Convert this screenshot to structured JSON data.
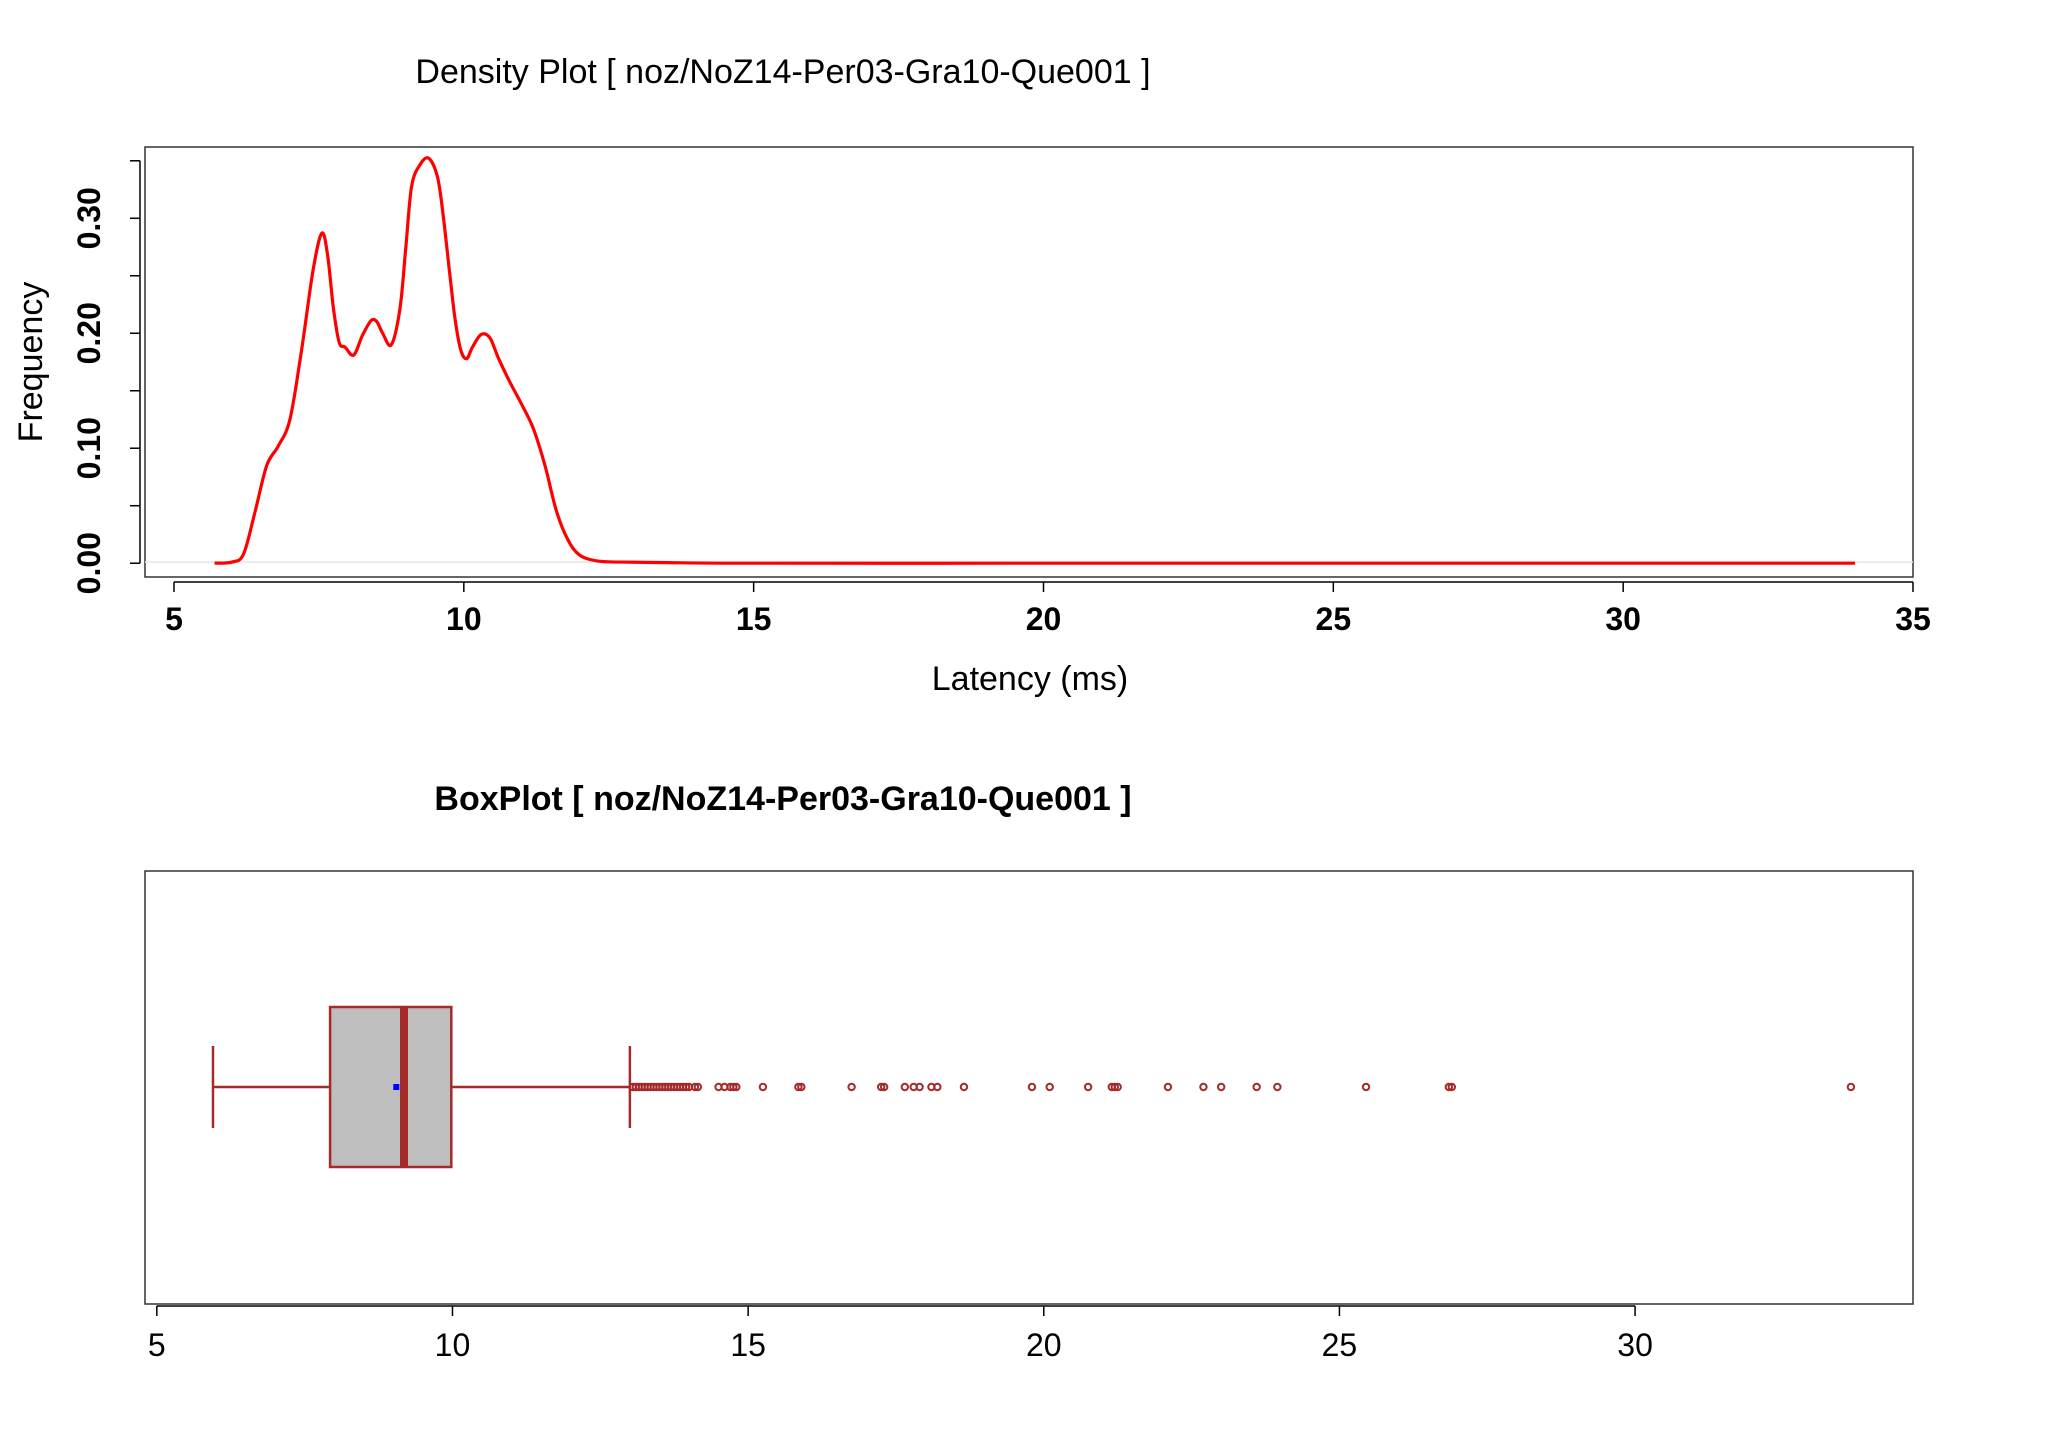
{
  "chart_data": [
    {
      "type": "line",
      "title": "Density Plot [ noz/NoZ14-Per03-Gra10-Que001 ]",
      "xlabel": "Latency (ms)",
      "ylabel": "Frequency",
      "xlim": [
        4.5,
        35
      ],
      "ylim": [
        -0.012,
        0.362
      ],
      "x_ticks": [
        5,
        10,
        15,
        20,
        25,
        30,
        35
      ],
      "y_ticks": [
        0.0,
        0.1,
        0.2,
        0.3
      ],
      "y_tick_labels": [
        "0.00",
        "0.10",
        "0.20",
        "0.30"
      ],
      "y_minor_ticks": [
        0.05,
        0.15,
        0.25,
        0.35
      ],
      "series": [
        {
          "color": "#ff0000",
          "x": [
            5.7,
            6.0,
            6.2,
            6.4,
            6.6,
            6.8,
            7.0,
            7.2,
            7.4,
            7.55,
            7.65,
            7.75,
            7.85,
            7.95,
            8.1,
            8.25,
            8.4,
            8.5,
            8.6,
            8.75,
            8.9,
            9.0,
            9.1,
            9.25,
            9.4,
            9.55,
            9.65,
            9.75,
            9.85,
            9.95,
            10.05,
            10.15,
            10.3,
            10.45,
            10.6,
            10.8,
            11.0,
            11.2,
            11.4,
            11.6,
            11.8,
            12.0,
            12.3,
            12.7,
            13.5,
            15,
            20,
            25,
            30,
            34.0
          ],
          "y": [
            0.0,
            0.001,
            0.008,
            0.045,
            0.085,
            0.102,
            0.125,
            0.185,
            0.255,
            0.287,
            0.268,
            0.222,
            0.192,
            0.188,
            0.181,
            0.198,
            0.211,
            0.21,
            0.2,
            0.19,
            0.222,
            0.275,
            0.328,
            0.347,
            0.352,
            0.335,
            0.3,
            0.255,
            0.212,
            0.185,
            0.178,
            0.188,
            0.199,
            0.196,
            0.178,
            0.157,
            0.138,
            0.117,
            0.085,
            0.045,
            0.02,
            0.007,
            0.002,
            0.001,
            0.0005,
            0.0,
            0.0,
            0.0,
            0.0,
            0.0
          ]
        }
      ]
    },
    {
      "type": "box",
      "title": "BoxPlot [ noz/NoZ14-Per03-Gra10-Que001 ]",
      "xlim": [
        4.8,
        34.7
      ],
      "x_ticks": [
        5,
        10,
        15,
        20,
        25,
        30
      ],
      "stats": {
        "whisker_low": 5.95,
        "q1": 7.93,
        "median": 9.18,
        "mean": 9.05,
        "q3": 9.98,
        "whisker_high": 13.0
      },
      "colors": {
        "border": "#a52a2a",
        "fill": "#bebebe",
        "mean": "#0000ff"
      },
      "outliers": [
        13.05,
        13.1,
        13.15,
        13.2,
        13.25,
        13.3,
        13.35,
        13.4,
        13.45,
        13.5,
        13.55,
        13.6,
        13.65,
        13.7,
        13.75,
        13.8,
        13.85,
        13.9,
        13.95,
        14.0,
        14.1,
        14.15,
        14.5,
        14.6,
        14.7,
        14.75,
        14.8,
        15.25,
        15.85,
        15.9,
        16.75,
        17.25,
        17.3,
        17.65,
        17.8,
        17.9,
        18.1,
        18.2,
        18.65,
        19.8,
        20.1,
        20.75,
        21.15,
        21.2,
        21.25,
        22.1,
        22.7,
        23.0,
        23.6,
        23.95,
        25.45,
        26.85,
        26.9,
        33.65
      ]
    }
  ]
}
